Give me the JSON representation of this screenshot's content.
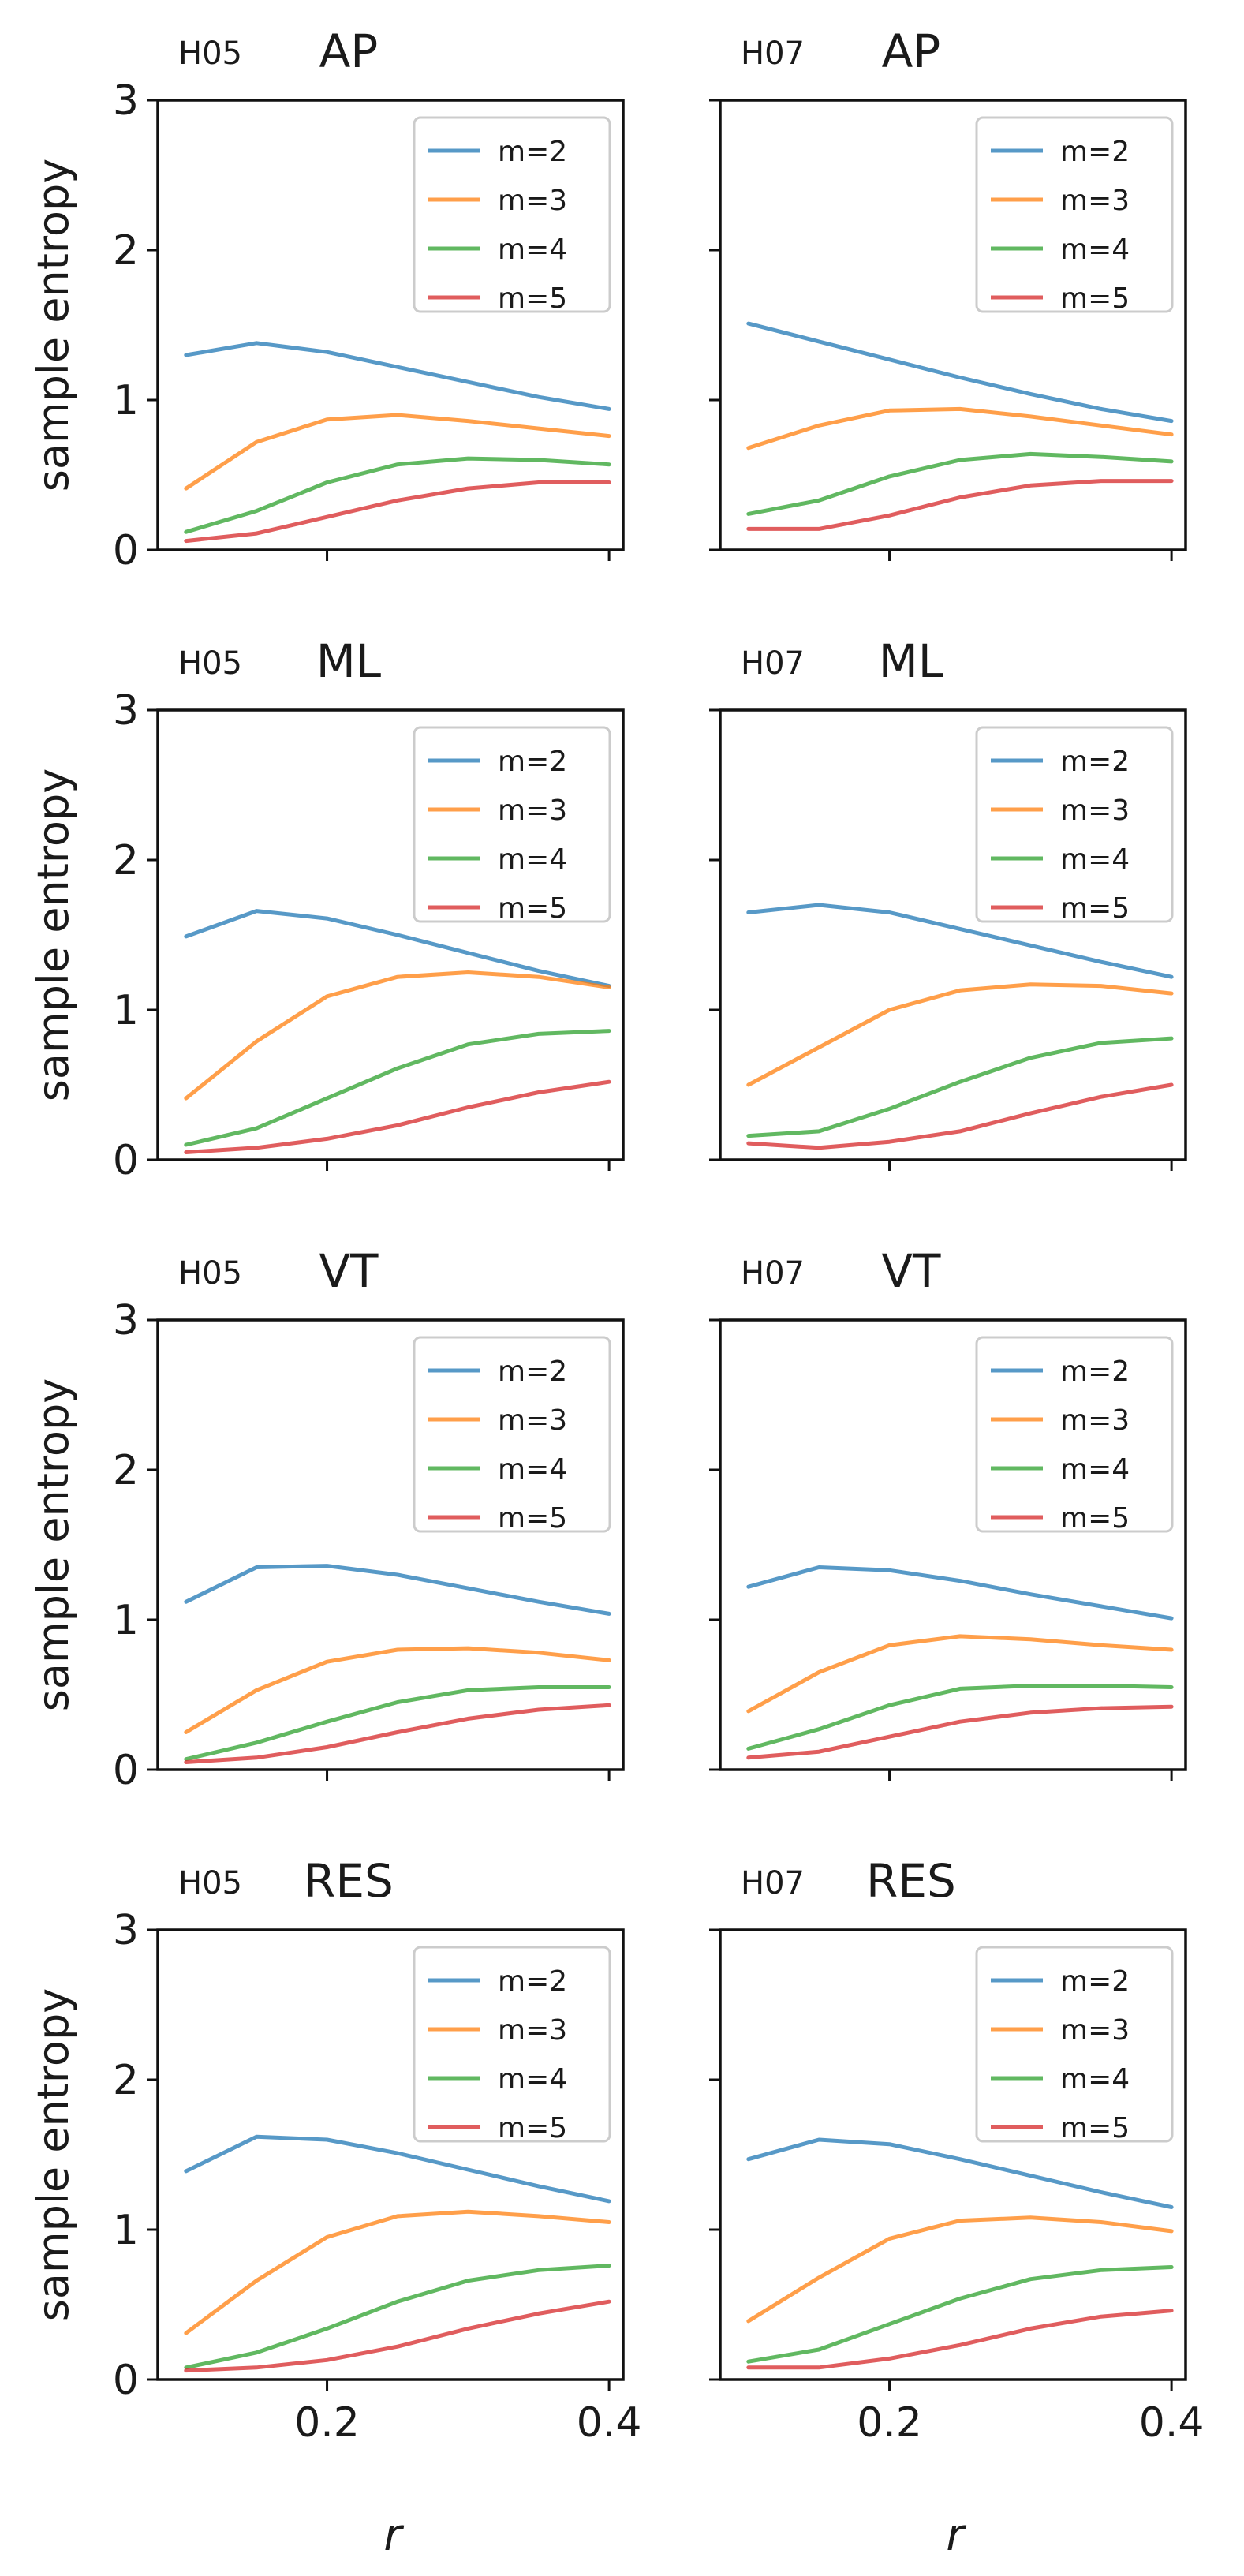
{
  "figure": {
    "xlabel": "r",
    "ylabel": "sample entropy"
  },
  "chart_data": [
    {
      "type": "line",
      "subject": "H05",
      "title": "AP",
      "x": [
        0.1,
        0.15,
        0.2,
        0.25,
        0.3,
        0.35,
        0.4
      ],
      "xlim": [
        0.08,
        0.41
      ],
      "ylim": [
        0,
        3
      ],
      "xticks": [
        0.2,
        0.4
      ],
      "yticks": [
        0,
        1,
        2,
        3
      ],
      "xlabel": "r",
      "ylabel": "sample entropy",
      "grid": false,
      "legend_position": "top-right",
      "series": [
        {
          "name": "m=2",
          "color": "#1f77b4",
          "values": [
            1.3,
            1.38,
            1.32,
            1.22,
            1.12,
            1.02,
            0.94
          ]
        },
        {
          "name": "m=3",
          "color": "#ff7f0e",
          "values": [
            0.41,
            0.72,
            0.87,
            0.9,
            0.86,
            0.81,
            0.76
          ]
        },
        {
          "name": "m=4",
          "color": "#2ca02c",
          "values": [
            0.12,
            0.26,
            0.45,
            0.57,
            0.61,
            0.6,
            0.57
          ]
        },
        {
          "name": "m=5",
          "color": "#d62728",
          "values": [
            0.06,
            0.11,
            0.22,
            0.33,
            0.41,
            0.45,
            0.45
          ]
        }
      ]
    },
    {
      "type": "line",
      "subject": "H07",
      "title": "AP",
      "x": [
        0.1,
        0.15,
        0.2,
        0.25,
        0.3,
        0.35,
        0.4
      ],
      "xlim": [
        0.08,
        0.41
      ],
      "ylim": [
        0,
        3
      ],
      "xticks": [
        0.2,
        0.4
      ],
      "yticks": [
        0,
        1,
        2,
        3
      ],
      "xlabel": "r",
      "ylabel": "sample entropy",
      "grid": false,
      "legend_position": "top-right",
      "series": [
        {
          "name": "m=2",
          "color": "#1f77b4",
          "values": [
            1.51,
            1.39,
            1.27,
            1.15,
            1.04,
            0.94,
            0.86
          ]
        },
        {
          "name": "m=3",
          "color": "#ff7f0e",
          "values": [
            0.68,
            0.83,
            0.93,
            0.94,
            0.89,
            0.83,
            0.77
          ]
        },
        {
          "name": "m=4",
          "color": "#2ca02c",
          "values": [
            0.24,
            0.33,
            0.49,
            0.6,
            0.64,
            0.62,
            0.59
          ]
        },
        {
          "name": "m=5",
          "color": "#d62728",
          "values": [
            0.14,
            0.14,
            0.23,
            0.35,
            0.43,
            0.46,
            0.46
          ]
        }
      ]
    },
    {
      "type": "line",
      "subject": "H05",
      "title": "ML",
      "x": [
        0.1,
        0.15,
        0.2,
        0.25,
        0.3,
        0.35,
        0.4
      ],
      "xlim": [
        0.08,
        0.41
      ],
      "ylim": [
        0,
        3
      ],
      "xticks": [
        0.2,
        0.4
      ],
      "yticks": [
        0,
        1,
        2,
        3
      ],
      "xlabel": "r",
      "ylabel": "sample entropy",
      "grid": false,
      "legend_position": "top-right",
      "series": [
        {
          "name": "m=2",
          "color": "#1f77b4",
          "values": [
            1.49,
            1.66,
            1.61,
            1.5,
            1.38,
            1.26,
            1.16
          ]
        },
        {
          "name": "m=3",
          "color": "#ff7f0e",
          "values": [
            0.41,
            0.79,
            1.09,
            1.22,
            1.25,
            1.22,
            1.15
          ]
        },
        {
          "name": "m=4",
          "color": "#2ca02c",
          "values": [
            0.1,
            0.21,
            0.41,
            0.61,
            0.77,
            0.84,
            0.86
          ]
        },
        {
          "name": "m=5",
          "color": "#d62728",
          "values": [
            0.05,
            0.08,
            0.14,
            0.23,
            0.35,
            0.45,
            0.52
          ]
        }
      ]
    },
    {
      "type": "line",
      "subject": "H07",
      "title": "ML",
      "x": [
        0.1,
        0.15,
        0.2,
        0.25,
        0.3,
        0.35,
        0.4
      ],
      "xlim": [
        0.08,
        0.41
      ],
      "ylim": [
        0,
        3
      ],
      "xticks": [
        0.2,
        0.4
      ],
      "yticks": [
        0,
        1,
        2,
        3
      ],
      "xlabel": "r",
      "ylabel": "sample entropy",
      "grid": false,
      "legend_position": "top-right",
      "series": [
        {
          "name": "m=2",
          "color": "#1f77b4",
          "values": [
            1.65,
            1.7,
            1.65,
            1.54,
            1.43,
            1.32,
            1.22
          ]
        },
        {
          "name": "m=3",
          "color": "#ff7f0e",
          "values": [
            0.5,
            0.75,
            1.0,
            1.13,
            1.17,
            1.16,
            1.11
          ]
        },
        {
          "name": "m=4",
          "color": "#2ca02c",
          "values": [
            0.16,
            0.19,
            0.34,
            0.52,
            0.68,
            0.78,
            0.81
          ]
        },
        {
          "name": "m=5",
          "color": "#d62728",
          "values": [
            0.11,
            0.08,
            0.12,
            0.19,
            0.31,
            0.42,
            0.5
          ]
        }
      ]
    },
    {
      "type": "line",
      "subject": "H05",
      "title": "VT",
      "x": [
        0.1,
        0.15,
        0.2,
        0.25,
        0.3,
        0.35,
        0.4
      ],
      "xlim": [
        0.08,
        0.41
      ],
      "ylim": [
        0,
        3
      ],
      "xticks": [
        0.2,
        0.4
      ],
      "yticks": [
        0,
        1,
        2,
        3
      ],
      "xlabel": "r",
      "ylabel": "sample entropy",
      "grid": false,
      "legend_position": "top-right",
      "series": [
        {
          "name": "m=2",
          "color": "#1f77b4",
          "values": [
            1.12,
            1.35,
            1.36,
            1.3,
            1.21,
            1.12,
            1.04
          ]
        },
        {
          "name": "m=3",
          "color": "#ff7f0e",
          "values": [
            0.25,
            0.53,
            0.72,
            0.8,
            0.81,
            0.78,
            0.73
          ]
        },
        {
          "name": "m=4",
          "color": "#2ca02c",
          "values": [
            0.07,
            0.18,
            0.32,
            0.45,
            0.53,
            0.55,
            0.55
          ]
        },
        {
          "name": "m=5",
          "color": "#d62728",
          "values": [
            0.05,
            0.08,
            0.15,
            0.25,
            0.34,
            0.4,
            0.43
          ]
        }
      ]
    },
    {
      "type": "line",
      "subject": "H07",
      "title": "VT",
      "x": [
        0.1,
        0.15,
        0.2,
        0.25,
        0.3,
        0.35,
        0.4
      ],
      "xlim": [
        0.08,
        0.41
      ],
      "ylim": [
        0,
        3
      ],
      "xticks": [
        0.2,
        0.4
      ],
      "yticks": [
        0,
        1,
        2,
        3
      ],
      "xlabel": "r",
      "ylabel": "sample entropy",
      "grid": false,
      "legend_position": "top-right",
      "series": [
        {
          "name": "m=2",
          "color": "#1f77b4",
          "values": [
            1.22,
            1.35,
            1.33,
            1.26,
            1.17,
            1.09,
            1.01
          ]
        },
        {
          "name": "m=3",
          "color": "#ff7f0e",
          "values": [
            0.39,
            0.65,
            0.83,
            0.89,
            0.87,
            0.83,
            0.8
          ]
        },
        {
          "name": "m=4",
          "color": "#2ca02c",
          "values": [
            0.14,
            0.27,
            0.43,
            0.54,
            0.56,
            0.56,
            0.55
          ]
        },
        {
          "name": "m=5",
          "color": "#d62728",
          "values": [
            0.08,
            0.12,
            0.22,
            0.32,
            0.38,
            0.41,
            0.42
          ]
        }
      ]
    },
    {
      "type": "line",
      "subject": "H05",
      "title": "RES",
      "x": [
        0.1,
        0.15,
        0.2,
        0.25,
        0.3,
        0.35,
        0.4
      ],
      "xlim": [
        0.08,
        0.41
      ],
      "ylim": [
        0,
        3
      ],
      "xticks": [
        0.2,
        0.4
      ],
      "yticks": [
        0,
        1,
        2,
        3
      ],
      "xlabel": "r",
      "ylabel": "sample entropy",
      "grid": false,
      "legend_position": "top-right",
      "series": [
        {
          "name": "m=2",
          "color": "#1f77b4",
          "values": [
            1.39,
            1.62,
            1.6,
            1.51,
            1.4,
            1.29,
            1.19
          ]
        },
        {
          "name": "m=3",
          "color": "#ff7f0e",
          "values": [
            0.31,
            0.66,
            0.95,
            1.09,
            1.12,
            1.09,
            1.05
          ]
        },
        {
          "name": "m=4",
          "color": "#2ca02c",
          "values": [
            0.08,
            0.18,
            0.34,
            0.52,
            0.66,
            0.73,
            0.76
          ]
        },
        {
          "name": "m=5",
          "color": "#d62728",
          "values": [
            0.06,
            0.08,
            0.13,
            0.22,
            0.34,
            0.44,
            0.52
          ]
        }
      ]
    },
    {
      "type": "line",
      "subject": "H07",
      "title": "RES",
      "x": [
        0.1,
        0.15,
        0.2,
        0.25,
        0.3,
        0.35,
        0.4
      ],
      "xlim": [
        0.08,
        0.41
      ],
      "ylim": [
        0,
        3
      ],
      "xticks": [
        0.2,
        0.4
      ],
      "yticks": [
        0,
        1,
        2,
        3
      ],
      "xlabel": "r",
      "ylabel": "sample entropy",
      "grid": false,
      "legend_position": "top-right",
      "series": [
        {
          "name": "m=2",
          "color": "#1f77b4",
          "values": [
            1.47,
            1.6,
            1.57,
            1.47,
            1.36,
            1.25,
            1.15
          ]
        },
        {
          "name": "m=3",
          "color": "#ff7f0e",
          "values": [
            0.39,
            0.68,
            0.94,
            1.06,
            1.08,
            1.05,
            0.99
          ]
        },
        {
          "name": "m=4",
          "color": "#2ca02c",
          "values": [
            0.12,
            0.2,
            0.37,
            0.54,
            0.67,
            0.73,
            0.75
          ]
        },
        {
          "name": "m=5",
          "color": "#d62728",
          "values": [
            0.08,
            0.08,
            0.14,
            0.23,
            0.34,
            0.42,
            0.46
          ]
        }
      ]
    }
  ]
}
